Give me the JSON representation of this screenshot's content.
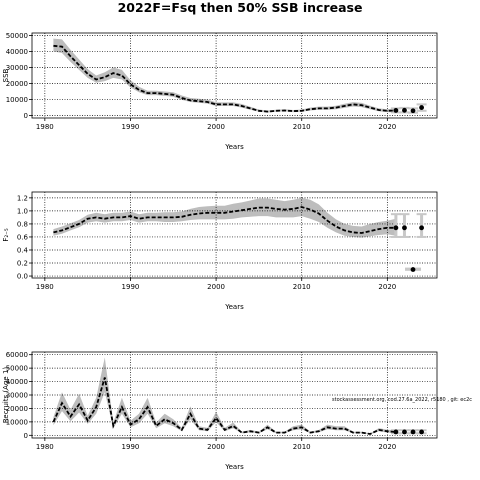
{
  "figure_title": "2022F=Fsq then 50% SSB increase",
  "annotation": "stockassessment.org, cod.27.6a_2022, r5180 , git: ec2c",
  "colors": {
    "band": "#bdbdbd",
    "line": "#000000",
    "grid": "#000000",
    "forecast_band": "#c8c8c8"
  },
  "chart_data": [
    {
      "type": "line",
      "title": "",
      "xlabel": "Years",
      "ylabel": "SSB",
      "xlim": [
        1978.5,
        2025.8
      ],
      "ylim": [
        -1500,
        51500
      ],
      "xticks": [
        1980,
        1990,
        2000,
        2010,
        2020
      ],
      "yticks": [
        0,
        10000,
        20000,
        30000,
        40000,
        50000
      ],
      "grid": true,
      "x": [
        1981,
        1982,
        1983,
        1984,
        1985,
        1986,
        1987,
        1988,
        1989,
        1990,
        1991,
        1992,
        1993,
        1994,
        1995,
        1996,
        1997,
        1998,
        1999,
        2000,
        2001,
        2002,
        2003,
        2004,
        2005,
        2006,
        2007,
        2008,
        2009,
        2010,
        2011,
        2012,
        2013,
        2014,
        2015,
        2016,
        2017,
        2018,
        2019,
        2020,
        2021
      ],
      "values": [
        43500,
        43000,
        37000,
        31500,
        26000,
        22500,
        24000,
        26500,
        25000,
        19500,
        16000,
        14000,
        14000,
        13500,
        13000,
        11000,
        9500,
        9000,
        8500,
        7000,
        7000,
        7000,
        6000,
        4500,
        3000,
        2500,
        3000,
        3200,
        2800,
        3000,
        4000,
        4500,
        4500,
        5000,
        6000,
        7000,
        6500,
        5000,
        3500,
        3000,
        3200
      ],
      "lower": [
        40000,
        39000,
        33500,
        28500,
        23500,
        20500,
        21500,
        23500,
        22500,
        17500,
        14500,
        12800,
        12800,
        12300,
        11800,
        9800,
        8500,
        8000,
        7500,
        6000,
        6000,
        6000,
        5000,
        3700,
        2400,
        1900,
        2400,
        2600,
        2200,
        2400,
        3200,
        3600,
        3600,
        4000,
        4800,
        5700,
        5300,
        4000,
        2700,
        2200,
        2000
      ],
      "upper": [
        48000,
        47500,
        41000,
        35000,
        29000,
        25000,
        27000,
        30000,
        28500,
        22000,
        18000,
        15500,
        15500,
        15000,
        14500,
        12500,
        11000,
        10500,
        10000,
        8200,
        8200,
        8200,
        7200,
        5500,
        3800,
        3200,
        3700,
        3900,
        3500,
        3800,
        5000,
        5600,
        5600,
        6200,
        7400,
        8400,
        7900,
        6200,
        4500,
        4000,
        4500
      ],
      "forecast": {
        "x": [
          2021,
          2022,
          2023,
          2024
        ],
        "values": [
          3200,
          3300,
          3000,
          5000
        ],
        "lower": [
          2000,
          2000,
          1800,
          3000
        ],
        "upper": [
          4500,
          4800,
          4500,
          7000
        ]
      }
    },
    {
      "type": "line",
      "title": "",
      "xlabel": "Years",
      "ylabel": "F₂₋₅",
      "xlim": [
        1978.5,
        2025.8
      ],
      "ylim": [
        -0.03,
        1.29
      ],
      "xticks": [
        1980,
        1990,
        2000,
        2010,
        2020
      ],
      "yticks": [
        0.0,
        0.2,
        0.4,
        0.6,
        0.8,
        1.0,
        1.2
      ],
      "ytick_labels": [
        "0.0",
        "0.2",
        "0.4",
        "0.6",
        "0.8",
        "1.0",
        "1.2"
      ],
      "grid": true,
      "x": [
        1981,
        1982,
        1983,
        1984,
        1985,
        1986,
        1987,
        1988,
        1989,
        1990,
        1991,
        1992,
        1993,
        1994,
        1995,
        1996,
        1997,
        1998,
        1999,
        2000,
        2001,
        2002,
        2003,
        2004,
        2005,
        2006,
        2007,
        2008,
        2009,
        2010,
        2011,
        2012,
        2013,
        2014,
        2015,
        2016,
        2017,
        2018,
        2019,
        2020,
        2021
      ],
      "values": [
        0.67,
        0.7,
        0.75,
        0.8,
        0.88,
        0.9,
        0.88,
        0.9,
        0.9,
        0.92,
        0.88,
        0.9,
        0.9,
        0.9,
        0.9,
        0.91,
        0.94,
        0.96,
        0.97,
        0.97,
        0.97,
        0.99,
        1.01,
        1.03,
        1.05,
        1.05,
        1.03,
        1.02,
        1.03,
        1.06,
        1.02,
        0.96,
        0.85,
        0.76,
        0.7,
        0.67,
        0.66,
        0.69,
        0.72,
        0.74,
        0.74
      ],
      "lower": [
        0.62,
        0.65,
        0.7,
        0.75,
        0.82,
        0.84,
        0.82,
        0.84,
        0.84,
        0.86,
        0.82,
        0.84,
        0.84,
        0.83,
        0.83,
        0.84,
        0.86,
        0.87,
        0.87,
        0.87,
        0.87,
        0.88,
        0.9,
        0.91,
        0.92,
        0.92,
        0.9,
        0.9,
        0.9,
        0.92,
        0.88,
        0.83,
        0.74,
        0.67,
        0.62,
        0.6,
        0.59,
        0.61,
        0.63,
        0.64,
        0.62
      ],
      "upper": [
        0.72,
        0.76,
        0.81,
        0.86,
        0.94,
        0.97,
        0.95,
        0.97,
        0.97,
        0.99,
        0.95,
        0.97,
        0.97,
        0.98,
        0.98,
        0.99,
        1.03,
        1.06,
        1.07,
        1.08,
        1.08,
        1.11,
        1.13,
        1.16,
        1.19,
        1.19,
        1.17,
        1.15,
        1.17,
        1.2,
        1.17,
        1.1,
        0.97,
        0.87,
        0.8,
        0.77,
        0.76,
        0.8,
        0.83,
        0.85,
        0.88
      ],
      "forecast": {
        "x": [
          2021,
          2022,
          2024
        ],
        "values": [
          0.74,
          0.74,
          0.74
        ],
        "lower": [
          0.6,
          0.6,
          0.6
        ],
        "upper": [
          0.95,
          0.95,
          0.95
        ]
      },
      "extra_point": {
        "x": 2023,
        "value": 0.1,
        "lower": 0.08,
        "upper": 0.13
      }
    },
    {
      "type": "line",
      "title": "",
      "xlabel": "Years",
      "ylabel": "Recruits (Age 1)",
      "xlim": [
        1978.5,
        2025.8
      ],
      "ylim": [
        -2000,
        62000
      ],
      "xticks": [
        1980,
        1990,
        2000,
        2010,
        2020
      ],
      "yticks": [
        0,
        10000,
        20000,
        30000,
        40000,
        50000,
        60000
      ],
      "grid": true,
      "x": [
        1981,
        1982,
        1983,
        1984,
        1985,
        1986,
        1987,
        1988,
        1989,
        1990,
        1991,
        1992,
        1993,
        1994,
        1995,
        1996,
        1997,
        1998,
        1999,
        2000,
        2001,
        2002,
        2003,
        2004,
        2005,
        2006,
        2007,
        2008,
        2009,
        2010,
        2011,
        2012,
        2013,
        2014,
        2015,
        2016,
        2017,
        2018,
        2019,
        2020,
        2021
      ],
      "values": [
        10000,
        24000,
        14000,
        23000,
        11000,
        21000,
        43000,
        7000,
        21000,
        8000,
        12000,
        21000,
        7000,
        12000,
        9000,
        4000,
        16000,
        5000,
        4000,
        13000,
        4000,
        7000,
        2000,
        3000,
        2000,
        6000,
        2000,
        2000,
        5000,
        6000,
        2000,
        3000,
        6000,
        5000,
        5000,
        2000,
        2000,
        1000,
        4000,
        3000,
        2500
      ],
      "lower": [
        7500,
        18000,
        10500,
        17000,
        8500,
        16000,
        32000,
        5200,
        16000,
        6000,
        9000,
        16000,
        5200,
        9000,
        6800,
        3000,
        12000,
        3700,
        3000,
        9800,
        3000,
        5200,
        1500,
        2200,
        1500,
        4500,
        1500,
        1500,
        3700,
        4500,
        1500,
        2200,
        4500,
        3700,
        3700,
        1500,
        1500,
        700,
        3000,
        2000,
        1500
      ],
      "upper": [
        13500,
        32000,
        19000,
        31000,
        14500,
        28000,
        58000,
        9500,
        28000,
        10800,
        16000,
        28000,
        9500,
        16000,
        12000,
        5500,
        21500,
        6800,
        5500,
        17500,
        5500,
        9500,
        2700,
        4000,
        2700,
        8000,
        2700,
        2700,
        6800,
        8000,
        2700,
        4000,
        8000,
        6800,
        6800,
        2700,
        2700,
        1400,
        5400,
        4200,
        3800
      ],
      "forecast": {
        "x": [
          2021,
          2022,
          2023,
          2024
        ],
        "values": [
          2500,
          2500,
          2500,
          2500
        ],
        "lower": [
          1500,
          1500,
          1500,
          1500
        ],
        "upper": [
          3800,
          3800,
          3800,
          3800
        ]
      }
    }
  ]
}
